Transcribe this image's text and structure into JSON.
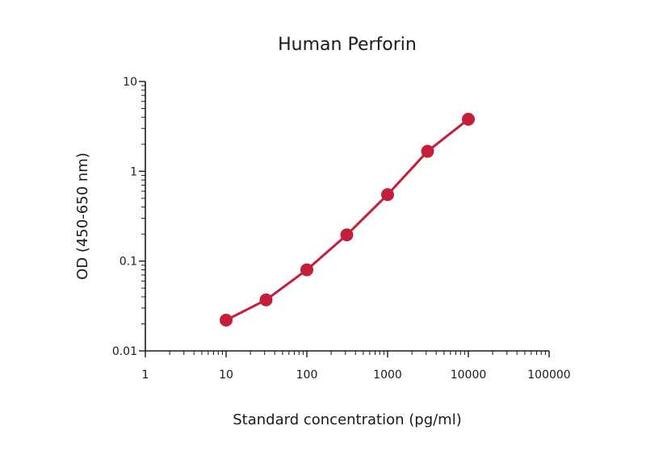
{
  "chart_data": {
    "type": "line",
    "title": "Human Perforin",
    "xlabel": "Standard concentration (pg/ml)",
    "ylabel": "OD  (450-650 nm)",
    "xscale": "log",
    "yscale": "log",
    "xlim": [
      1,
      100000
    ],
    "ylim": [
      0.01,
      10
    ],
    "x_ticks": [
      1,
      10,
      100,
      1000,
      10000,
      100000
    ],
    "x_tick_labels": [
      "1",
      "10",
      "100",
      "1000",
      "10000",
      "100000"
    ],
    "y_ticks": [
      0.01,
      0.1,
      1,
      10
    ],
    "y_tick_labels": [
      "0.01",
      "0.1",
      "1",
      "10"
    ],
    "grid": false,
    "series": [
      {
        "color": "#c41e3a",
        "x": [
          10,
          31.25,
          100,
          312.5,
          1000,
          3125,
          10000
        ],
        "y": [
          0.022,
          0.037,
          0.08,
          0.196,
          0.55,
          1.67,
          3.8
        ]
      }
    ]
  }
}
